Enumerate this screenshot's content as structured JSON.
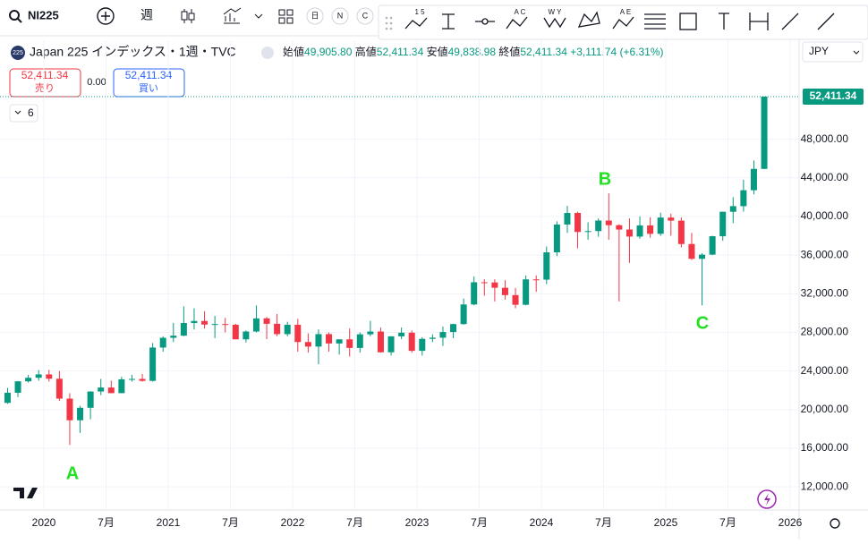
{
  "toolbar": {
    "symbol": "NI225",
    "interval": "週",
    "buttons": [
      "日",
      "N",
      "C"
    ],
    "tool_labels": [
      "1 5",
      "A C",
      "W Y",
      "A E"
    ]
  },
  "header": {
    "badge": "225",
    "title": "Japan 225 インデックス・1週・TVC",
    "open_label": "始値",
    "open": "49,905.80",
    "high_label": "高値",
    "high": "52,411.34",
    "low_label": "安値",
    "low": "49,838.98",
    "close_label": "終値",
    "close": "52,411.34",
    "change": "+3,111.74 (+6.31%)"
  },
  "trade": {
    "sell_price": "52,411.34",
    "sell_label": "売り",
    "spread": "0.00",
    "buy_price": "52,411.34",
    "buy_label": "買い"
  },
  "currency": "JPY",
  "indicator_count": "6",
  "chart_data": {
    "type": "candlestick",
    "x": [
      "2019-09",
      "2019-10",
      "2019-11",
      "2019-12",
      "2020-01",
      "2020-02",
      "2020-03",
      "2020-04",
      "2020-05",
      "2020-06",
      "2020-07",
      "2020-08",
      "2020-09",
      "2020-10",
      "2020-11",
      "2020-12",
      "2021-01",
      "2021-02",
      "2021-03",
      "2021-04",
      "2021-05",
      "2021-06",
      "2021-07",
      "2021-08",
      "2021-09",
      "2021-10",
      "2021-11",
      "2021-12",
      "2022-01",
      "2022-02",
      "2022-03",
      "2022-04",
      "2022-05",
      "2022-06",
      "2022-07",
      "2022-08",
      "2022-09",
      "2022-10",
      "2022-11",
      "2022-12",
      "2023-01",
      "2023-02",
      "2023-03",
      "2023-04",
      "2023-05",
      "2023-06",
      "2023-07",
      "2023-08",
      "2023-09",
      "2023-10",
      "2023-11",
      "2023-12",
      "2024-01",
      "2024-02",
      "2024-03",
      "2024-04",
      "2024-05",
      "2024-06",
      "2024-07",
      "2024-08",
      "2024-09",
      "2024-10",
      "2024-11",
      "2024-12",
      "2025-01",
      "2025-02",
      "2025-03",
      "2025-04",
      "2025-05",
      "2025-06",
      "2025-07",
      "2025-08",
      "2025-09",
      "2025-10"
    ],
    "open": [
      20700,
      21750,
      22930,
      23300,
      23650,
      23200,
      21140,
      18900,
      20190,
      21880,
      22290,
      21710,
      23140,
      23180,
      22980,
      26430,
      27440,
      27660,
      28970,
      29180,
      28810,
      28860,
      28790,
      27280,
      28090,
      29450,
      28890,
      27820,
      28790,
      27000,
      26530,
      27820,
      26850,
      27280,
      26390,
      27800,
      28090,
      25940,
      27590,
      27970,
      26090,
      27330,
      27450,
      28040,
      28860,
      30890,
      33190,
      33170,
      32620,
      31860,
      30860,
      33490,
      33460,
      36290,
      39170,
      40370,
      38400,
      38490,
      39580,
      39100,
      38650,
      37920,
      39080,
      38210,
      39890,
      39570,
      37150,
      35620,
      36050,
      37960,
      40490,
      41070,
      42720,
      44930
    ],
    "high": [
      22250,
      22970,
      23600,
      24100,
      24120,
      24000,
      21700,
      20400,
      21900,
      23180,
      23000,
      23400,
      23600,
      23700,
      26900,
      27600,
      28980,
      30700,
      30500,
      30200,
      29700,
      29500,
      28900,
      28200,
      30800,
      29600,
      29900,
      29100,
      29400,
      27900,
      28300,
      28000,
      27300,
      28400,
      28000,
      29200,
      28500,
      27600,
      28500,
      28200,
      27500,
      27800,
      28600,
      28900,
      31500,
      33800,
      33500,
      33500,
      33400,
      32600,
      33900,
      33900,
      36900,
      39500,
      41100,
      40500,
      39400,
      39800,
      42400,
      39200,
      39800,
      40000,
      39900,
      40400,
      40300,
      39900,
      38300,
      36200,
      38000,
      40500,
      42000,
      43800,
      45800,
      52411
    ],
    "low": [
      20600,
      21300,
      22800,
      23000,
      22900,
      20900,
      16350,
      17600,
      19000,
      21500,
      21700,
      21700,
      22900,
      22900,
      22900,
      26000,
      27000,
      27600,
      28300,
      28400,
      27400,
      28000,
      27300,
      26950,
      28000,
      27300,
      27600,
      27600,
      26000,
      25900,
      24700,
      26000,
      25700,
      25500,
      25900,
      27600,
      25900,
      25600,
      27300,
      25900,
      25600,
      27000,
      26600,
      27400,
      28800,
      30800,
      31800,
      31200,
      31400,
      30500,
      30800,
      32200,
      33000,
      35900,
      38300,
      36700,
      37600,
      37900,
      37600,
      31200,
      35200,
      37700,
      37800,
      38000,
      38000,
      36800,
      35500,
      30800,
      36000,
      37500,
      39300,
      40500,
      42300,
      44900
    ],
    "close": [
      21750,
      22930,
      23300,
      23650,
      23200,
      21140,
      18900,
      20190,
      21880,
      22290,
      21710,
      23140,
      23180,
      22980,
      26430,
      27440,
      27660,
      28970,
      29180,
      28810,
      28860,
      28790,
      27280,
      28090,
      29450,
      28890,
      27820,
      28790,
      27000,
      26530,
      27820,
      26850,
      27280,
      26390,
      27800,
      28090,
      25940,
      27590,
      27970,
      26090,
      27330,
      27450,
      28040,
      28860,
      30890,
      33190,
      33170,
      32620,
      31860,
      30860,
      33490,
      33460,
      36290,
      39170,
      40370,
      38400,
      38490,
      39580,
      39100,
      38650,
      37920,
      39080,
      38210,
      39890,
      39570,
      37150,
      35620,
      36050,
      37960,
      40490,
      41070,
      42720,
      44930,
      52411
    ],
    "up_color": "#089981",
    "down_color": "#f23645",
    "ylim": [
      9700,
      58250
    ],
    "yticks": [
      {
        "value": 12000,
        "label": "12,000.00"
      },
      {
        "value": 16000,
        "label": "16,000.00"
      },
      {
        "value": 20000,
        "label": "20,000.00"
      },
      {
        "value": 24000,
        "label": "24,000.00"
      },
      {
        "value": 28000,
        "label": "28,000.00"
      },
      {
        "value": 32000,
        "label": "32,000.00"
      },
      {
        "value": 36000,
        "label": "36,000.00"
      },
      {
        "value": 40000,
        "label": "40,000.00"
      },
      {
        "value": 44000,
        "label": "44,000.00"
      },
      {
        "value": 48000,
        "label": "48,000.00"
      }
    ],
    "xticks": [
      {
        "value": "2020-01",
        "label": "2020"
      },
      {
        "value": "2020-07",
        "label": "7月"
      },
      {
        "value": "2021-01",
        "label": "2021"
      },
      {
        "value": "2021-07",
        "label": "7月"
      },
      {
        "value": "2022-01",
        "label": "2022"
      },
      {
        "value": "2022-07",
        "label": "7月"
      },
      {
        "value": "2023-01",
        "label": "2023"
      },
      {
        "value": "2023-07",
        "label": "7月"
      },
      {
        "value": "2024-01",
        "label": "2024"
      },
      {
        "value": "2024-07",
        "label": "7月"
      },
      {
        "value": "2025-01",
        "label": "2025"
      },
      {
        "value": "2025-07",
        "label": "7月"
      },
      {
        "value": "2026-01",
        "label": "2026"
      }
    ],
    "last_price": {
      "value": 52411.34,
      "label": "52,411.34"
    },
    "annotations": [
      "A",
      "B",
      "C"
    ],
    "annotation_color": "#22e022",
    "grid": true
  }
}
